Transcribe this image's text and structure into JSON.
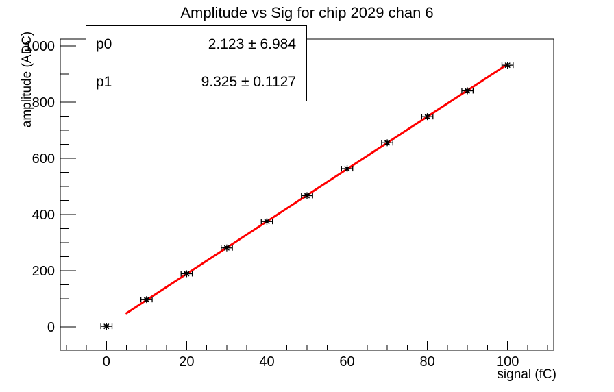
{
  "title": "Amplitude vs Sig for chip 2029 chan 6",
  "stats_box": {
    "rows": [
      {
        "param": "p0",
        "value": "2.123 ± 6.984"
      },
      {
        "param": "p1",
        "value": "9.325 ± 0.1127"
      }
    ]
  },
  "chart_data": {
    "type": "scatter",
    "title": "Amplitude vs Sig for chip 2029 chan 6",
    "xlabel": "signal (fC)",
    "ylabel": "amplitude (ADC)",
    "x": [
      0,
      10,
      20,
      30,
      40,
      50,
      60,
      70,
      80,
      90,
      100
    ],
    "y": [
      2,
      97,
      189,
      281,
      375,
      467,
      563,
      655,
      748,
      840,
      931
    ],
    "x_err": 1.4,
    "y_err": 5,
    "marker": "asterisk",
    "marker_color": "#000000",
    "axis_color": "#000000",
    "background_color": "#ffffff",
    "fit": {
      "type": "linear",
      "p0": 2.123,
      "p1": 9.325,
      "x_start": 5,
      "x_end": 100,
      "color": "#ff0000",
      "width": 3
    },
    "xlim": [
      -11.5,
      111.5
    ],
    "ylim": [
      -83,
      1024
    ],
    "x_major_ticks": [
      0,
      20,
      40,
      60,
      80,
      100
    ],
    "x_minor_step": 5,
    "x_major_step": 20,
    "y_major_ticks": [
      0,
      200,
      400,
      600,
      800,
      1000
    ],
    "y_minor_step": 50,
    "y_major_step": 200,
    "grid": false,
    "legend_position": "none"
  }
}
